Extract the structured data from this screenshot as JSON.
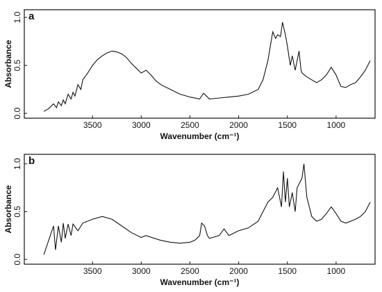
{
  "chart_data": [
    {
      "type": "line",
      "title": "a",
      "xlabel": "Wavenumber (cm⁻¹)",
      "ylabel": "Absorbance",
      "xlim": [
        4200,
        600
      ],
      "ylim": [
        -0.05,
        1.08
      ],
      "xticks": [
        3500,
        3000,
        2500,
        2000,
        1500,
        1000
      ],
      "yticks": [
        {
          "value": 0,
          "label": "0.0"
        },
        0.5,
        {
          "value": 1,
          "label": "1.0"
        }
      ],
      "series": [
        {
          "color": "#111111",
          "x": [
            4000,
            3950,
            3900,
            3870,
            3850,
            3820,
            3800,
            3780,
            3750,
            3720,
            3700,
            3680,
            3650,
            3620,
            3600,
            3550,
            3500,
            3450,
            3400,
            3350,
            3300,
            3250,
            3200,
            3150,
            3100,
            3050,
            3000,
            2950,
            2900,
            2850,
            2800,
            2700,
            2600,
            2500,
            2400,
            2360,
            2330,
            2300,
            2200,
            2100,
            2000,
            1900,
            1800,
            1750,
            1700,
            1650,
            1620,
            1600,
            1570,
            1550,
            1520,
            1500,
            1470,
            1450,
            1420,
            1400,
            1380,
            1360,
            1350,
            1300,
            1250,
            1200,
            1150,
            1100,
            1050,
            1000,
            950,
            900,
            850,
            800,
            750,
            700,
            650
          ],
          "values": [
            0.02,
            0.05,
            0.1,
            0.06,
            0.12,
            0.08,
            0.14,
            0.1,
            0.2,
            0.15,
            0.22,
            0.18,
            0.3,
            0.25,
            0.35,
            0.42,
            0.5,
            0.56,
            0.6,
            0.63,
            0.65,
            0.64,
            0.62,
            0.58,
            0.52,
            0.47,
            0.42,
            0.45,
            0.4,
            0.34,
            0.3,
            0.25,
            0.2,
            0.17,
            0.15,
            0.21,
            0.18,
            0.15,
            0.16,
            0.17,
            0.18,
            0.2,
            0.25,
            0.35,
            0.55,
            0.85,
            0.78,
            0.82,
            0.8,
            0.95,
            0.82,
            0.7,
            0.5,
            0.6,
            0.45,
            0.55,
            0.65,
            0.45,
            0.42,
            0.38,
            0.35,
            0.32,
            0.35,
            0.4,
            0.48,
            0.4,
            0.28,
            0.27,
            0.3,
            0.32,
            0.38,
            0.45,
            0.55
          ]
        }
      ]
    },
    {
      "type": "line",
      "title": "b",
      "xlabel": "Wavenumber (cm⁻¹)",
      "ylabel": "Absorbance",
      "xlim": [
        4200,
        600
      ],
      "ylim": [
        -0.05,
        1.1
      ],
      "xticks": [
        3500,
        3000,
        2500,
        2000,
        1500,
        1000
      ],
      "yticks": [
        {
          "value": 0,
          "label": "0.0"
        },
        0.5,
        {
          "value": 1,
          "label": "1.0"
        }
      ],
      "series": [
        {
          "color": "#111111",
          "x": [
            4000,
            3950,
            3900,
            3880,
            3850,
            3820,
            3800,
            3780,
            3750,
            3720,
            3700,
            3650,
            3600,
            3500,
            3400,
            3300,
            3200,
            3100,
            3000,
            2950,
            2800,
            2700,
            2600,
            2500,
            2450,
            2400,
            2380,
            2350,
            2320,
            2300,
            2200,
            2150,
            2100,
            2000,
            1900,
            1800,
            1750,
            1700,
            1650,
            1600,
            1560,
            1540,
            1520,
            1500,
            1480,
            1450,
            1420,
            1400,
            1350,
            1330,
            1300,
            1250,
            1200,
            1150,
            1100,
            1050,
            1000,
            950,
            900,
            850,
            800,
            750,
            700,
            650
          ],
          "values": [
            0.05,
            0.2,
            0.35,
            0.1,
            0.35,
            0.18,
            0.38,
            0.22,
            0.37,
            0.25,
            0.37,
            0.3,
            0.38,
            0.42,
            0.45,
            0.42,
            0.35,
            0.28,
            0.23,
            0.25,
            0.2,
            0.18,
            0.17,
            0.18,
            0.2,
            0.25,
            0.38,
            0.35,
            0.25,
            0.22,
            0.25,
            0.32,
            0.25,
            0.3,
            0.33,
            0.4,
            0.5,
            0.6,
            0.65,
            0.75,
            0.55,
            0.92,
            0.6,
            0.85,
            0.55,
            0.7,
            0.5,
            0.75,
            0.85,
            1.0,
            0.65,
            0.45,
            0.4,
            0.42,
            0.48,
            0.55,
            0.48,
            0.4,
            0.38,
            0.4,
            0.42,
            0.45,
            0.5,
            0.6
          ]
        }
      ]
    }
  ]
}
